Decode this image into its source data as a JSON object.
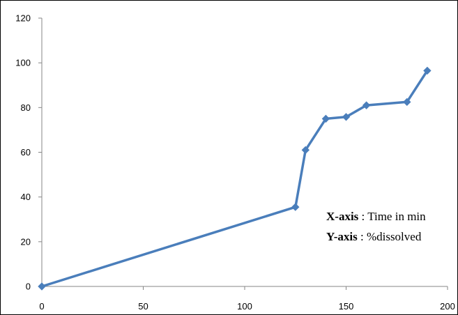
{
  "chart_data": {
    "type": "line",
    "title": "",
    "xlabel": "",
    "ylabel": "",
    "xlim": [
      0,
      200
    ],
    "ylim": [
      0,
      120
    ],
    "x_ticks": [
      "0",
      "50",
      "100",
      "150",
      "200"
    ],
    "y_ticks": [
      "0",
      "20",
      "40",
      "60",
      "80",
      "100",
      "120"
    ],
    "grid": false,
    "series": [
      {
        "color": "#4a7ebb",
        "x": [
          0,
          125,
          130,
          140,
          150,
          160,
          180,
          190
        ],
        "y": [
          0,
          35.5,
          61,
          75,
          75.8,
          81,
          82.5,
          96.5
        ]
      }
    ],
    "annotations": [
      {
        "key": "X-axis",
        "text": " : Time in min"
      },
      {
        "key": "Y-axis",
        "text": " : %dissolved"
      }
    ]
  }
}
